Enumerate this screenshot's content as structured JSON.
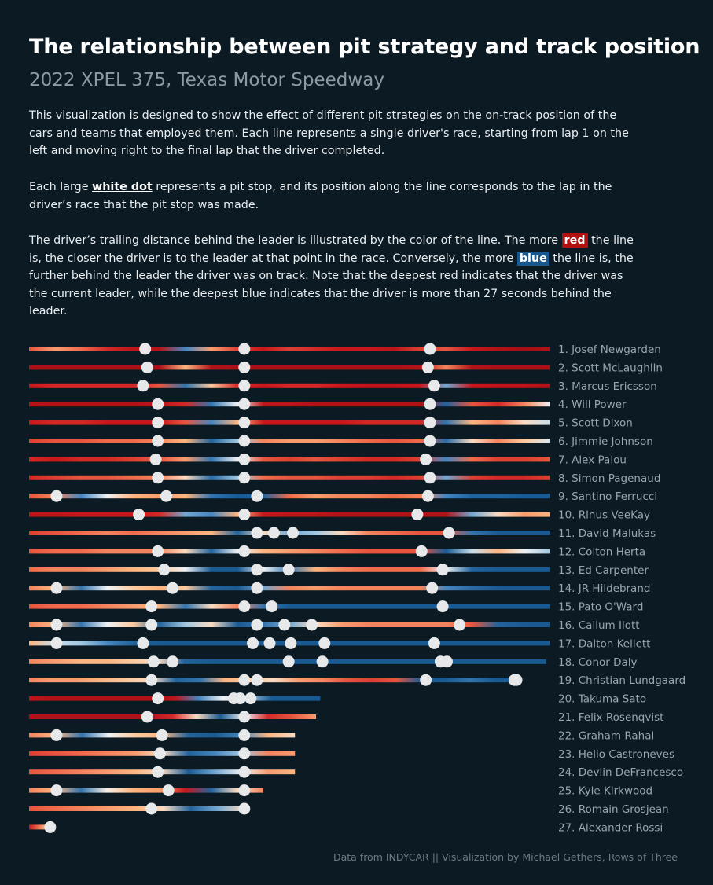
{
  "header": {
    "title": "The relationship between pit strategy and track position",
    "subtitle": "2022 XPEL 375, Texas Motor Speedway"
  },
  "description": {
    "p1": "This visualization is designed to show the effect of different pit strategies on the on-track position of the cars and teams that employed them. Each line represents a single driver's race, starting from lap 1 on the left and moving right to the final lap that the driver completed.",
    "p2_a": "Each large ",
    "p2_b": "white dot",
    "p2_c": " represents a pit stop, and its position along the line corresponds to the lap in the driver’s race that the pit stop was made.",
    "p3_a": "The driver’s trailing distance behind the leader is illustrated by the color of the line.  The more ",
    "p3_red": "red",
    "p3_b": " the line is, the closer the driver is to the leader at that point in the race.  Conversely, the more ",
    "p3_blue": "blue",
    "p3_c": " the line is, the further behind the leader the driver was on track.  Note that the deepest red indicates that the driver was the current leader, while the deepest blue indicates that the driver is more than 27 seconds behind the leader."
  },
  "footer": "Data from INDYCAR || Visualization by Michael Gethers, Rows of Three",
  "colors": {
    "background": "#0c1a23",
    "leader_red": "#a50f15",
    "mid_white": "#f7f7f7",
    "far_blue": "#1a5a92",
    "pit_dot": "#e6e8ea",
    "label": "#9aa5ad"
  },
  "chart_data": {
    "type": "line",
    "x_axis": "lap",
    "total_laps": 248,
    "color_scale": {
      "measure": "gap to leader (seconds)",
      "deepest_red": "current leader",
      "deepest_blue": "more than 27 seconds behind"
    },
    "drivers": [
      {
        "label": "1. Josef Newgarden",
        "final_lap": 248,
        "pit_laps": [
          56,
          103,
          191
        ],
        "gap_profile": [
          6,
          9,
          7,
          4,
          2,
          1.5,
          22,
          9,
          5,
          3,
          5,
          4,
          3,
          3,
          2,
          5,
          6,
          3,
          1,
          0,
          1
        ]
      },
      {
        "label": "2. Scott McLaughlin",
        "final_lap": 248,
        "pit_laps": [
          57,
          103,
          190
        ],
        "gap_profile": [
          0.5,
          0.5,
          0.5,
          0.5,
          0.5,
          0.5,
          10,
          1,
          0.5,
          0.5,
          0.5,
          0.5,
          0.5,
          0.5,
          0.5,
          1,
          8,
          1,
          0.5,
          0.5,
          0.5
        ]
      },
      {
        "label": "3. Marcus Ericsson",
        "final_lap": 248,
        "pit_laps": [
          55,
          103,
          193
        ],
        "gap_profile": [
          3,
          4,
          4,
          4,
          4,
          6,
          24,
          11,
          4,
          3,
          4,
          4,
          3,
          2,
          2,
          3,
          20,
          3,
          2,
          2,
          1
        ]
      },
      {
        "label": "4. Will Power",
        "final_lap": 248,
        "pit_laps": [
          62,
          103,
          191
        ],
        "gap_profile": [
          1.5,
          1,
          1,
          1,
          1,
          2,
          4,
          24,
          14,
          2,
          2,
          1,
          1,
          1,
          1,
          1,
          26,
          6,
          4,
          8,
          14
        ]
      },
      {
        "label": "5. Scott Dixon",
        "final_lap": 248,
        "pit_laps": [
          62,
          103,
          191
        ],
        "gap_profile": [
          3,
          4,
          4,
          3,
          3,
          3,
          6,
          22,
          10,
          3,
          3,
          3,
          3,
          4,
          4,
          4,
          24,
          10,
          8,
          12,
          16
        ]
      },
      {
        "label": "6. Jimmie Johnson",
        "final_lap": 248,
        "pit_laps": [
          62,
          103,
          191
        ],
        "gap_profile": [
          5,
          6,
          6,
          7,
          7,
          8,
          10,
          26,
          18,
          8,
          9,
          9,
          8,
          7,
          6,
          7,
          25,
          12,
          8,
          11,
          15
        ]
      },
      {
        "label": "7. Alex Palou",
        "final_lap": 248,
        "pit_laps": [
          61,
          103,
          189
        ],
        "gap_profile": [
          4,
          3,
          4,
          4,
          5,
          6,
          9,
          24,
          14,
          6,
          5,
          6,
          5,
          4,
          4,
          5,
          22,
          7,
          5,
          5,
          6
        ]
      },
      {
        "label": "8. Simon Pagenaud",
        "final_lap": 248,
        "pit_laps": [
          62,
          103,
          191
        ],
        "gap_profile": [
          4,
          5,
          6,
          6,
          7,
          8,
          12,
          25,
          18,
          7,
          6,
          6,
          5,
          5,
          4,
          5,
          20,
          5,
          4,
          4,
          5
        ]
      },
      {
        "label": "9. Santino Ferrucci",
        "final_lap": 248,
        "pit_laps": [
          14,
          66,
          109,
          190
        ],
        "gap_profile": [
          6,
          8,
          22,
          14,
          10,
          9,
          10,
          24,
          28,
          26,
          7,
          9,
          8,
          8,
          7,
          8,
          22,
          26,
          26,
          27,
          28
        ]
      },
      {
        "label": "10. Rinus VeeKay",
        "final_lap": 248,
        "pit_laps": [
          53,
          103,
          185
        ],
        "gap_profile": [
          2,
          2,
          3,
          3,
          3,
          4,
          20,
          22,
          10,
          3,
          2,
          2,
          1,
          1,
          1,
          1,
          1,
          20,
          12,
          9,
          10
        ]
      },
      {
        "label": "11. David Malukas",
        "final_lap": 248,
        "pit_laps": [
          109,
          117,
          126,
          200
        ],
        "gap_profile": [
          5,
          6,
          7,
          8,
          7,
          8,
          9,
          10,
          26,
          12,
          20,
          18,
          12,
          8,
          7,
          6,
          6,
          24,
          28,
          27,
          28
        ]
      },
      {
        "label": "12. Colton Herta",
        "final_lap": 248,
        "pit_laps": [
          62,
          103,
          187
        ],
        "gap_profile": [
          6,
          7,
          7,
          8,
          8,
          8,
          12,
          26,
          14,
          10,
          9,
          8,
          7,
          6,
          6,
          6,
          28,
          16,
          10,
          14,
          18
        ]
      },
      {
        "label": "13. Ed Carpenter",
        "final_lap": 248,
        "pit_laps": [
          65,
          109,
          124,
          197
        ],
        "gap_profile": [
          7,
          8,
          8,
          9,
          10,
          11,
          14,
          27,
          28,
          14,
          24,
          10,
          8,
          7,
          7,
          7,
          14,
          26,
          28,
          28,
          28
        ]
      },
      {
        "label": "14. JR Hildebrand",
        "final_lap": 248,
        "pit_laps": [
          14,
          69,
          109,
          192
        ],
        "gap_profile": [
          8,
          10,
          24,
          14,
          11,
          10,
          11,
          26,
          28,
          20,
          8,
          9,
          8,
          8,
          8,
          8,
          22,
          25,
          27,
          28,
          28
        ]
      },
      {
        "label": "15. Pato O'Ward",
        "final_lap": 248,
        "pit_laps": [
          59,
          103,
          116,
          197
        ],
        "gap_profile": [
          6,
          7,
          7,
          8,
          9,
          10,
          24,
          12,
          8,
          24,
          28,
          28,
          28,
          28,
          28,
          28,
          28,
          28,
          28,
          28,
          28
        ]
      },
      {
        "label": "16. Callum Ilott",
        "final_lap": 248,
        "pit_laps": [
          14,
          59,
          109,
          122,
          135,
          205
        ],
        "gap_profile": [
          8,
          10,
          24,
          14,
          11,
          26,
          18,
          12,
          28,
          24,
          20,
          12,
          9,
          8,
          8,
          8,
          8,
          6,
          26,
          28,
          28
        ]
      },
      {
        "label": "17. Dalton Kellett",
        "final_lap": 248,
        "pit_laps": [
          14,
          55,
          107,
          115,
          125,
          141,
          193
        ],
        "gap_profile": [
          10,
          16,
          18,
          22,
          26,
          28,
          28,
          28,
          28,
          28,
          28,
          28,
          28,
          28,
          28,
          28,
          28,
          28,
          28,
          28,
          28
        ]
      },
      {
        "label": "18. Conor Daly",
        "final_lap": 246,
        "pit_laps": [
          60,
          69,
          124,
          140,
          196,
          199
        ],
        "gap_profile": [
          8,
          9,
          10,
          10,
          11,
          12,
          26,
          28,
          28,
          28,
          28,
          28,
          28,
          28,
          28,
          28,
          28,
          28,
          28,
          28,
          28
        ]
      },
      {
        "label": "19. Christian Lundgaard",
        "final_lap": 233,
        "pit_laps": [
          59,
          103,
          109,
          189,
          231,
          232
        ],
        "gap_profile": [
          8,
          9,
          9,
          10,
          11,
          12,
          26,
          24,
          10,
          11,
          12,
          9,
          8,
          6,
          5,
          6,
          27,
          28,
          24,
          28,
          28
        ]
      },
      {
        "label": "20. Takuma Sato",
        "final_lap": 139,
        "pit_laps": [
          62,
          98,
          101,
          106
        ],
        "gap_profile": [
          2,
          1,
          1,
          1,
          1,
          1,
          2,
          22,
          14,
          18,
          28,
          28,
          28
        ]
      },
      {
        "label": "21. Felix Rosenqvist",
        "final_lap": 137,
        "pit_laps": [
          57,
          103
        ],
        "gap_profile": [
          1,
          1,
          1,
          1,
          1,
          1,
          4,
          12,
          28,
          14,
          4,
          6,
          9
        ]
      },
      {
        "label": "22. Graham Rahal",
        "final_lap": 127,
        "pit_laps": [
          14,
          64,
          103
        ],
        "gap_profile": [
          8,
          10,
          24,
          14,
          11,
          10,
          26,
          28,
          22,
          10,
          12
        ]
      },
      {
        "label": "23. Helio Castroneves",
        "final_lap": 127,
        "pit_laps": [
          63,
          103
        ],
        "gap_profile": [
          5,
          6,
          7,
          8,
          9,
          12,
          26,
          22,
          18,
          8,
          9
        ]
      },
      {
        "label": "24. Devlin DeFrancesco",
        "final_lap": 127,
        "pit_laps": [
          62,
          103
        ],
        "gap_profile": [
          6,
          7,
          8,
          9,
          10,
          12,
          28,
          20,
          14,
          9,
          10
        ]
      },
      {
        "label": "25. Kyle Kirkwood",
        "final_lap": 112,
        "pit_laps": [
          14,
          67,
          103
        ],
        "gap_profile": [
          8,
          10,
          24,
          13,
          10,
          9,
          3,
          26,
          12,
          8
        ]
      },
      {
        "label": "26. Romain Grosjean",
        "final_lap": 103,
        "pit_laps": [
          59,
          103
        ],
        "gap_profile": [
          6,
          7,
          8,
          9,
          10,
          12,
          26,
          20,
          12
        ]
      },
      {
        "label": "27. Alexander Rossi",
        "final_lap": 11,
        "pit_laps": [
          11
        ],
        "gap_profile": [
          3,
          6,
          9,
          12
        ]
      }
    ]
  }
}
